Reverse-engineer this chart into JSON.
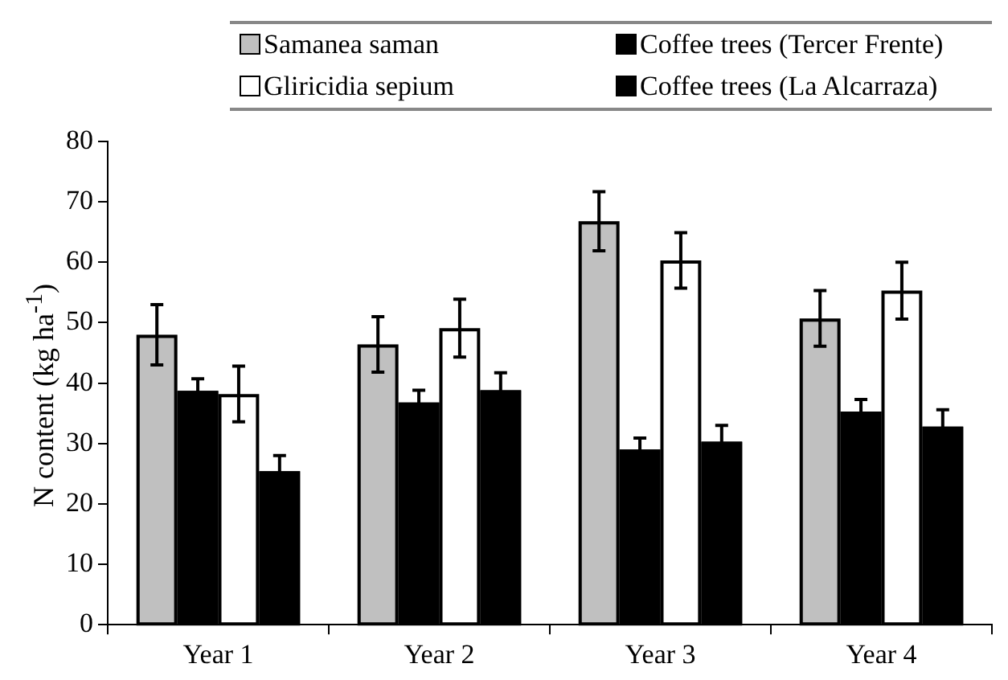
{
  "chart_data": {
    "type": "bar",
    "ylabel": "N content (kg ha$^{-1}$)",
    "categories": [
      "Year 1",
      "Year 2",
      "Year 3",
      "Year 4"
    ],
    "series": [
      {
        "name": "Samanea saman",
        "color": "#c0c0c0",
        "values": [
          48.0,
          46.4,
          66.8,
          50.7
        ],
        "errors": [
          5.0,
          4.6,
          4.9,
          4.6
        ]
      },
      {
        "name": "Coffee trees (Tercer Frente)",
        "color": "#000000",
        "values": [
          38.7,
          36.8,
          29.0,
          35.3
        ],
        "errors": [
          2.0,
          2.0,
          1.9,
          2.0
        ]
      },
      {
        "name": "Gliricidia sepium",
        "color": "#ffffff",
        "values": [
          38.2,
          49.1,
          60.3,
          55.3
        ],
        "errors": [
          4.6,
          4.8,
          4.6,
          4.7
        ]
      },
      {
        "name": "Coffee trees (La Alcarraza)",
        "color": "#000000",
        "values": [
          25.4,
          38.8,
          30.3,
          32.8
        ],
        "errors": [
          2.6,
          2.9,
          2.7,
          2.8
        ]
      }
    ],
    "ylim": [
      0,
      80
    ],
    "yticks": [
      0,
      10,
      20,
      30,
      40,
      50,
      60,
      70,
      80
    ],
    "grid": false,
    "legend": "top"
  }
}
